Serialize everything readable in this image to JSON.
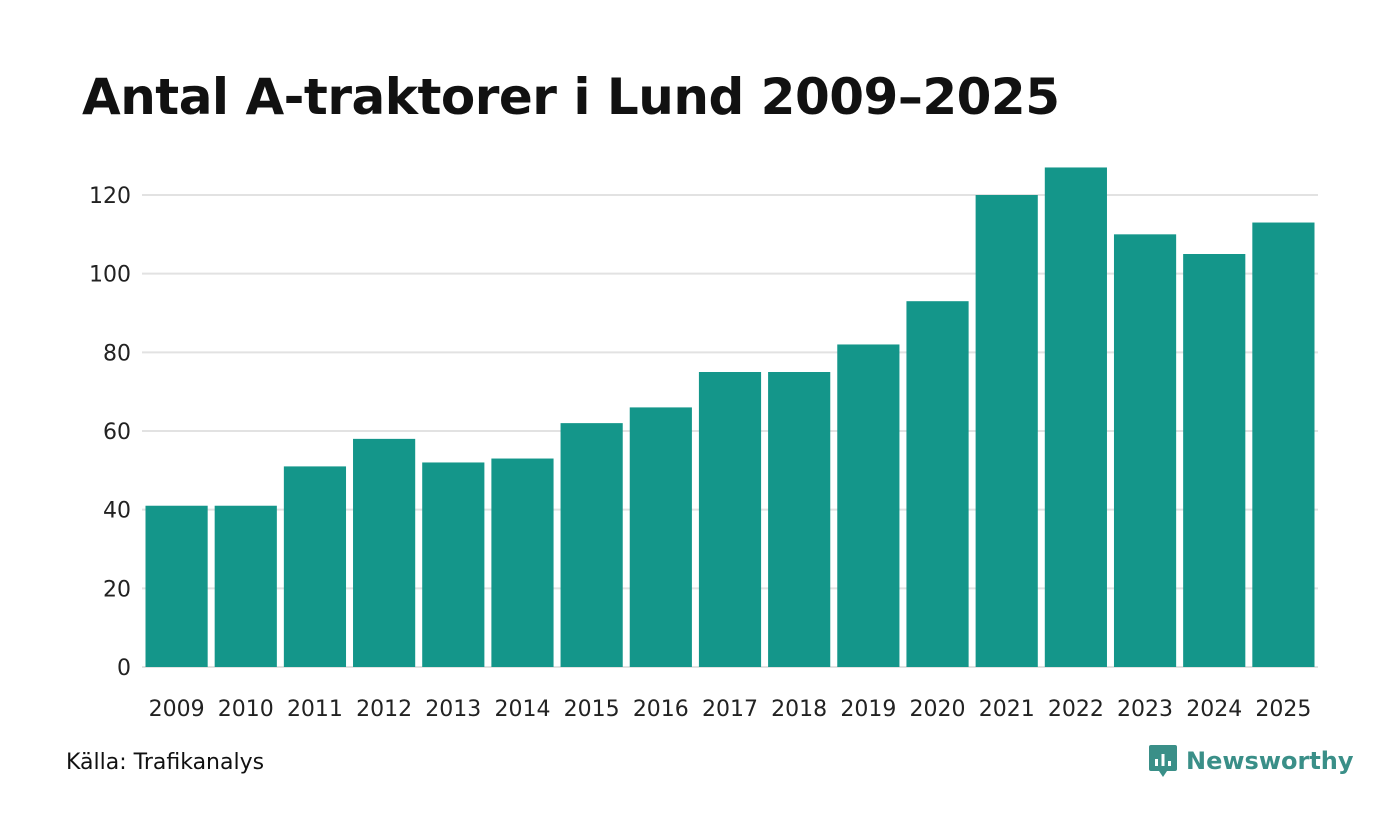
{
  "chart_data": {
    "type": "bar",
    "title": "Antal A-traktorer i Lund 2009–2025",
    "categories": [
      "2009",
      "2010",
      "2011",
      "2012",
      "2013",
      "2014",
      "2015",
      "2016",
      "2017",
      "2018",
      "2019",
      "2020",
      "2021",
      "2022",
      "2023",
      "2024",
      "2025"
    ],
    "values": [
      41,
      41,
      51,
      58,
      52,
      53,
      62,
      66,
      75,
      75,
      82,
      93,
      120,
      127,
      110,
      105,
      113
    ],
    "yticks": [
      0,
      20,
      40,
      60,
      80,
      100,
      120
    ],
    "ylim": [
      0,
      130
    ],
    "xlabel": "",
    "ylabel": "",
    "grid": true,
    "bar_color": "#14968a",
    "grid_color": "#e2e2e2"
  },
  "footer": {
    "source": "Källa: Trafikanalys",
    "brand": "Newsworthy",
    "brand_icon": "newsworthy-logo-icon",
    "brand_color": "#3a8f88"
  }
}
